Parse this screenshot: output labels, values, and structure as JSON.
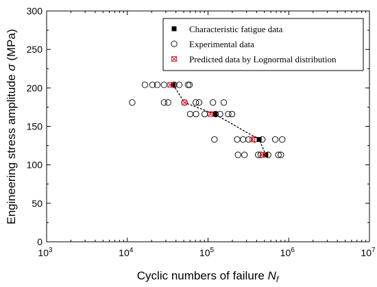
{
  "chart_data": {
    "type": "scatter",
    "xscale": "log",
    "xlim": [
      1000,
      10000000
    ],
    "ylim": [
      0,
      300
    ],
    "xlabel_text": "Cyclic numbers of failure ",
    "xlabel_var": "N",
    "xlabel_sub": "f",
    "ylabel_text": "Engineering stress amplitude ",
    "ylabel_var": "σ",
    "ylabel_unit": " (MPa)",
    "x_ticks": [
      {
        "value": 1000,
        "base": "10",
        "exp": "3"
      },
      {
        "value": 10000,
        "base": "10",
        "exp": "4"
      },
      {
        "value": 100000,
        "base": "10",
        "exp": "5"
      },
      {
        "value": 1000000,
        "base": "10",
        "exp": "6"
      },
      {
        "value": 10000000,
        "base": "10",
        "exp": "7"
      }
    ],
    "y_ticks": [
      0,
      50,
      100,
      150,
      200,
      250,
      300
    ],
    "grid": false,
    "legend_position": "top-right",
    "legend": [
      {
        "label": "Characteristic fatigue data",
        "marker": "filled-square"
      },
      {
        "label": "Experimental data",
        "marker": "open-circle"
      },
      {
        "label": "Predicted data by Lognormal distribution",
        "marker": "crossed-square"
      }
    ],
    "colors": {
      "characteristic": "#000000",
      "experimental": "#000000",
      "predicted": "#e8202a",
      "trend": "#000000"
    },
    "series": [
      {
        "name": "Experimental data",
        "marker": "open-circle",
        "points": [
          {
            "x": 11500,
            "y": 181
          },
          {
            "x": 16500,
            "y": 204
          },
          {
            "x": 20500,
            "y": 204
          },
          {
            "x": 23500,
            "y": 204
          },
          {
            "x": 28500,
            "y": 204
          },
          {
            "x": 28500,
            "y": 181
          },
          {
            "x": 32000,
            "y": 181
          },
          {
            "x": 38000,
            "y": 204
          },
          {
            "x": 44000,
            "y": 204
          },
          {
            "x": 51000,
            "y": 181
          },
          {
            "x": 56500,
            "y": 204
          },
          {
            "x": 59000,
            "y": 204
          },
          {
            "x": 60000,
            "y": 166
          },
          {
            "x": 70500,
            "y": 181
          },
          {
            "x": 71000,
            "y": 166
          },
          {
            "x": 77500,
            "y": 181
          },
          {
            "x": 91000,
            "y": 166
          },
          {
            "x": 115000,
            "y": 181
          },
          {
            "x": 120000,
            "y": 133
          },
          {
            "x": 124000,
            "y": 166
          },
          {
            "x": 141000,
            "y": 166
          },
          {
            "x": 157000,
            "y": 181
          },
          {
            "x": 178000,
            "y": 166
          },
          {
            "x": 198000,
            "y": 166
          },
          {
            "x": 230000,
            "y": 133
          },
          {
            "x": 235000,
            "y": 113
          },
          {
            "x": 272000,
            "y": 133
          },
          {
            "x": 283000,
            "y": 113
          },
          {
            "x": 318000,
            "y": 133
          },
          {
            "x": 378000,
            "y": 133
          },
          {
            "x": 418000,
            "y": 113
          },
          {
            "x": 450000,
            "y": 113
          },
          {
            "x": 470000,
            "y": 133
          },
          {
            "x": 555000,
            "y": 113
          },
          {
            "x": 680000,
            "y": 133
          },
          {
            "x": 745000,
            "y": 113
          },
          {
            "x": 800000,
            "y": 113
          },
          {
            "x": 830000,
            "y": 133
          }
        ]
      },
      {
        "name": "Characteristic fatigue data",
        "marker": "filled-square",
        "points": [
          {
            "x": 37000,
            "y": 204
          },
          {
            "x": 121000,
            "y": 166
          },
          {
            "x": 430000,
            "y": 133
          },
          {
            "x": 520000,
            "y": 113
          }
        ]
      },
      {
        "name": "Predicted data by Lognormal distribution",
        "marker": "crossed-square",
        "points": [
          {
            "x": 34000,
            "y": 204
          },
          {
            "x": 51000,
            "y": 181
          },
          {
            "x": 107000,
            "y": 166
          },
          {
            "x": 353000,
            "y": 133
          },
          {
            "x": 472000,
            "y": 113
          }
        ]
      }
    ],
    "trend_line": [
      {
        "x": 37000,
        "y": 204
      },
      {
        "x": 51000,
        "y": 181
      },
      {
        "x": 121000,
        "y": 166
      },
      {
        "x": 430000,
        "y": 133
      },
      {
        "x": 520000,
        "y": 113
      }
    ]
  }
}
